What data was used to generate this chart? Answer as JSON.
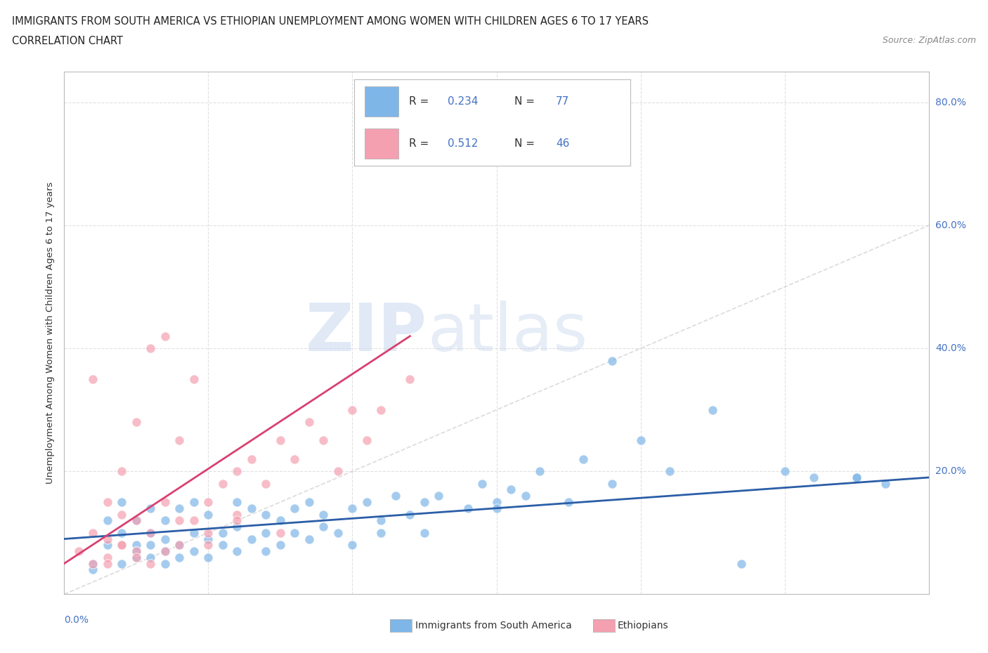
{
  "title_line1": "IMMIGRANTS FROM SOUTH AMERICA VS ETHIOPIAN UNEMPLOYMENT AMONG WOMEN WITH CHILDREN AGES 6 TO 17 YEARS",
  "title_line2": "CORRELATION CHART",
  "source_text": "Source: ZipAtlas.com",
  "ylabel": "Unemployment Among Women with Children Ages 6 to 17 years",
  "xlim": [
    0.0,
    0.6
  ],
  "ylim": [
    0.0,
    0.85
  ],
  "xticks": [
    0.0,
    0.1,
    0.2,
    0.3,
    0.4,
    0.5,
    0.6
  ],
  "yticks": [
    0.0,
    0.2,
    0.4,
    0.6,
    0.8
  ],
  "yticklabels": [
    "",
    "20.0%",
    "40.0%",
    "60.0%",
    "80.0%"
  ],
  "blue_color": "#7EB6E8",
  "pink_color": "#F4A0B0",
  "blue_line_color": "#2B5EA7",
  "pink_line_color": "#D94070",
  "diagonal_color": "#CCCCCC",
  "grid_color": "#E0E0E0",
  "accent_color": "#4472C4",
  "legend_R1": "0.234",
  "legend_N1": "77",
  "legend_R2": "0.512",
  "legend_N2": "46",
  "watermark_zip": "ZIP",
  "watermark_atlas": "atlas",
  "blue_scatter_x": [
    0.02,
    0.03,
    0.03,
    0.04,
    0.04,
    0.04,
    0.05,
    0.05,
    0.05,
    0.05,
    0.06,
    0.06,
    0.06,
    0.06,
    0.07,
    0.07,
    0.07,
    0.07,
    0.08,
    0.08,
    0.08,
    0.09,
    0.09,
    0.09,
    0.1,
    0.1,
    0.1,
    0.11,
    0.11,
    0.12,
    0.12,
    0.12,
    0.13,
    0.13,
    0.14,
    0.14,
    0.14,
    0.15,
    0.15,
    0.16,
    0.16,
    0.17,
    0.17,
    0.18,
    0.18,
    0.19,
    0.2,
    0.2,
    0.21,
    0.22,
    0.22,
    0.23,
    0.24,
    0.25,
    0.25,
    0.26,
    0.28,
    0.29,
    0.3,
    0.31,
    0.32,
    0.33,
    0.35,
    0.36,
    0.38,
    0.4,
    0.42,
    0.45,
    0.47,
    0.5,
    0.52,
    0.55,
    0.57,
    0.02,
    0.38,
    0.3,
    0.55
  ],
  "blue_scatter_y": [
    0.05,
    0.08,
    0.12,
    0.05,
    0.1,
    0.15,
    0.06,
    0.08,
    0.12,
    0.07,
    0.06,
    0.1,
    0.08,
    0.14,
    0.07,
    0.05,
    0.12,
    0.09,
    0.08,
    0.14,
    0.06,
    0.1,
    0.07,
    0.15,
    0.09,
    0.13,
    0.06,
    0.1,
    0.08,
    0.11,
    0.07,
    0.15,
    0.09,
    0.14,
    0.1,
    0.13,
    0.07,
    0.12,
    0.08,
    0.14,
    0.1,
    0.15,
    0.09,
    0.13,
    0.11,
    0.1,
    0.14,
    0.08,
    0.15,
    0.12,
    0.1,
    0.16,
    0.13,
    0.15,
    0.1,
    0.16,
    0.14,
    0.18,
    0.15,
    0.17,
    0.16,
    0.2,
    0.15,
    0.22,
    0.18,
    0.25,
    0.2,
    0.3,
    0.05,
    0.2,
    0.19,
    0.19,
    0.18,
    0.04,
    0.38,
    0.14,
    0.19
  ],
  "pink_scatter_x": [
    0.01,
    0.02,
    0.02,
    0.02,
    0.03,
    0.03,
    0.03,
    0.04,
    0.04,
    0.04,
    0.05,
    0.05,
    0.05,
    0.06,
    0.06,
    0.07,
    0.07,
    0.08,
    0.08,
    0.09,
    0.09,
    0.1,
    0.1,
    0.11,
    0.12,
    0.12,
    0.13,
    0.14,
    0.15,
    0.16,
    0.17,
    0.18,
    0.19,
    0.2,
    0.21,
    0.22,
    0.24,
    0.03,
    0.04,
    0.05,
    0.06,
    0.07,
    0.08,
    0.1,
    0.12,
    0.15
  ],
  "pink_scatter_y": [
    0.07,
    0.05,
    0.1,
    0.35,
    0.06,
    0.09,
    0.15,
    0.08,
    0.13,
    0.2,
    0.07,
    0.12,
    0.28,
    0.1,
    0.4,
    0.15,
    0.42,
    0.08,
    0.25,
    0.12,
    0.35,
    0.15,
    0.1,
    0.18,
    0.2,
    0.13,
    0.22,
    0.18,
    0.25,
    0.22,
    0.28,
    0.25,
    0.2,
    0.3,
    0.25,
    0.3,
    0.35,
    0.05,
    0.08,
    0.06,
    0.05,
    0.07,
    0.12,
    0.08,
    0.12,
    0.1
  ],
  "blue_trend_x": [
    0.0,
    0.6
  ],
  "blue_trend_y": [
    0.09,
    0.19
  ],
  "pink_trend_x": [
    0.0,
    0.24
  ],
  "pink_trend_y": [
    0.05,
    0.42
  ],
  "bottom_legend_blue": "Immigrants from South America",
  "bottom_legend_pink": "Ethiopians"
}
